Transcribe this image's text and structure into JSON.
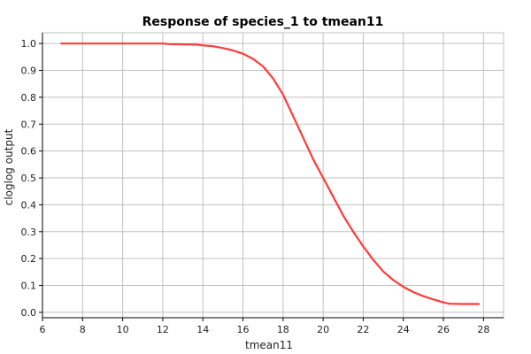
{
  "chart_data": {
    "type": "line",
    "title": "Response of species_1 to tmean11",
    "xlabel": "tmean11",
    "ylabel": "cloglog output",
    "xlim": [
      6,
      29
    ],
    "ylim": [
      -0.02,
      1.04
    ],
    "xticks": [
      6,
      8,
      10,
      12,
      14,
      16,
      18,
      20,
      22,
      24,
      26,
      28
    ],
    "yticks": [
      0.0,
      0.1,
      0.2,
      0.3,
      0.4,
      0.5,
      0.6,
      0.7,
      0.8,
      0.9,
      1.0
    ],
    "grid": true,
    "legend": "none",
    "colors": {
      "line": "#ff3b3b",
      "grid": "#c0c0c0",
      "plot_bg": "#ffffff",
      "axis": "#000000"
    },
    "series": [
      {
        "x": [
          6.9,
          8,
          10,
          12,
          12.3,
          13,
          13.7,
          14,
          14.5,
          15,
          15.5,
          16,
          16.5,
          17,
          17.5,
          18,
          18.5,
          19,
          19.5,
          20,
          20.5,
          21,
          21.5,
          22,
          22.5,
          23,
          23.5,
          24,
          24.5,
          25,
          25.5,
          26,
          26.3,
          27,
          27.8
        ],
        "y": [
          1.0,
          1.0,
          1.0,
          1.0,
          0.998,
          0.997,
          0.996,
          0.993,
          0.99,
          0.983,
          0.974,
          0.962,
          0.943,
          0.915,
          0.87,
          0.81,
          0.73,
          0.65,
          0.57,
          0.5,
          0.43,
          0.36,
          0.3,
          0.245,
          0.195,
          0.152,
          0.12,
          0.095,
          0.075,
          0.06,
          0.048,
          0.037,
          0.032,
          0.031,
          0.031
        ]
      }
    ]
  }
}
